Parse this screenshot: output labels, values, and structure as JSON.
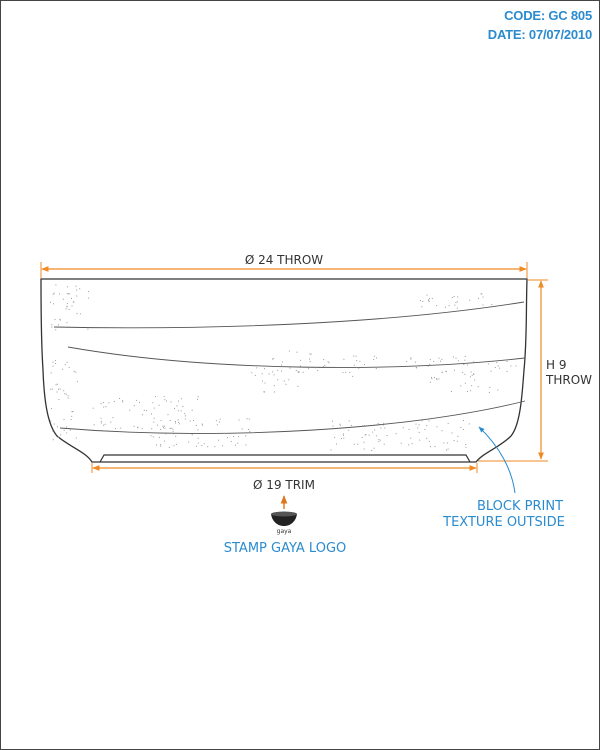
{
  "header": {
    "code": "CODE: GC 805",
    "date": "DATE: 07/07/2010"
  },
  "dimensions": {
    "top_diameter": "Ø 24 THROW",
    "height_line1": "H 9",
    "height_line2": "THROW",
    "base_diameter": "Ø 19 TRIM"
  },
  "notes": {
    "texture_line1": "BLOCK PRINT",
    "texture_line2": "TEXTURE OUTSIDE",
    "stamp": "STAMP GAYA LOGO",
    "logo_text": "gaya"
  },
  "colors": {
    "accent": "#2a8bcf",
    "dimension": "#f08a24",
    "line": "#333333"
  }
}
